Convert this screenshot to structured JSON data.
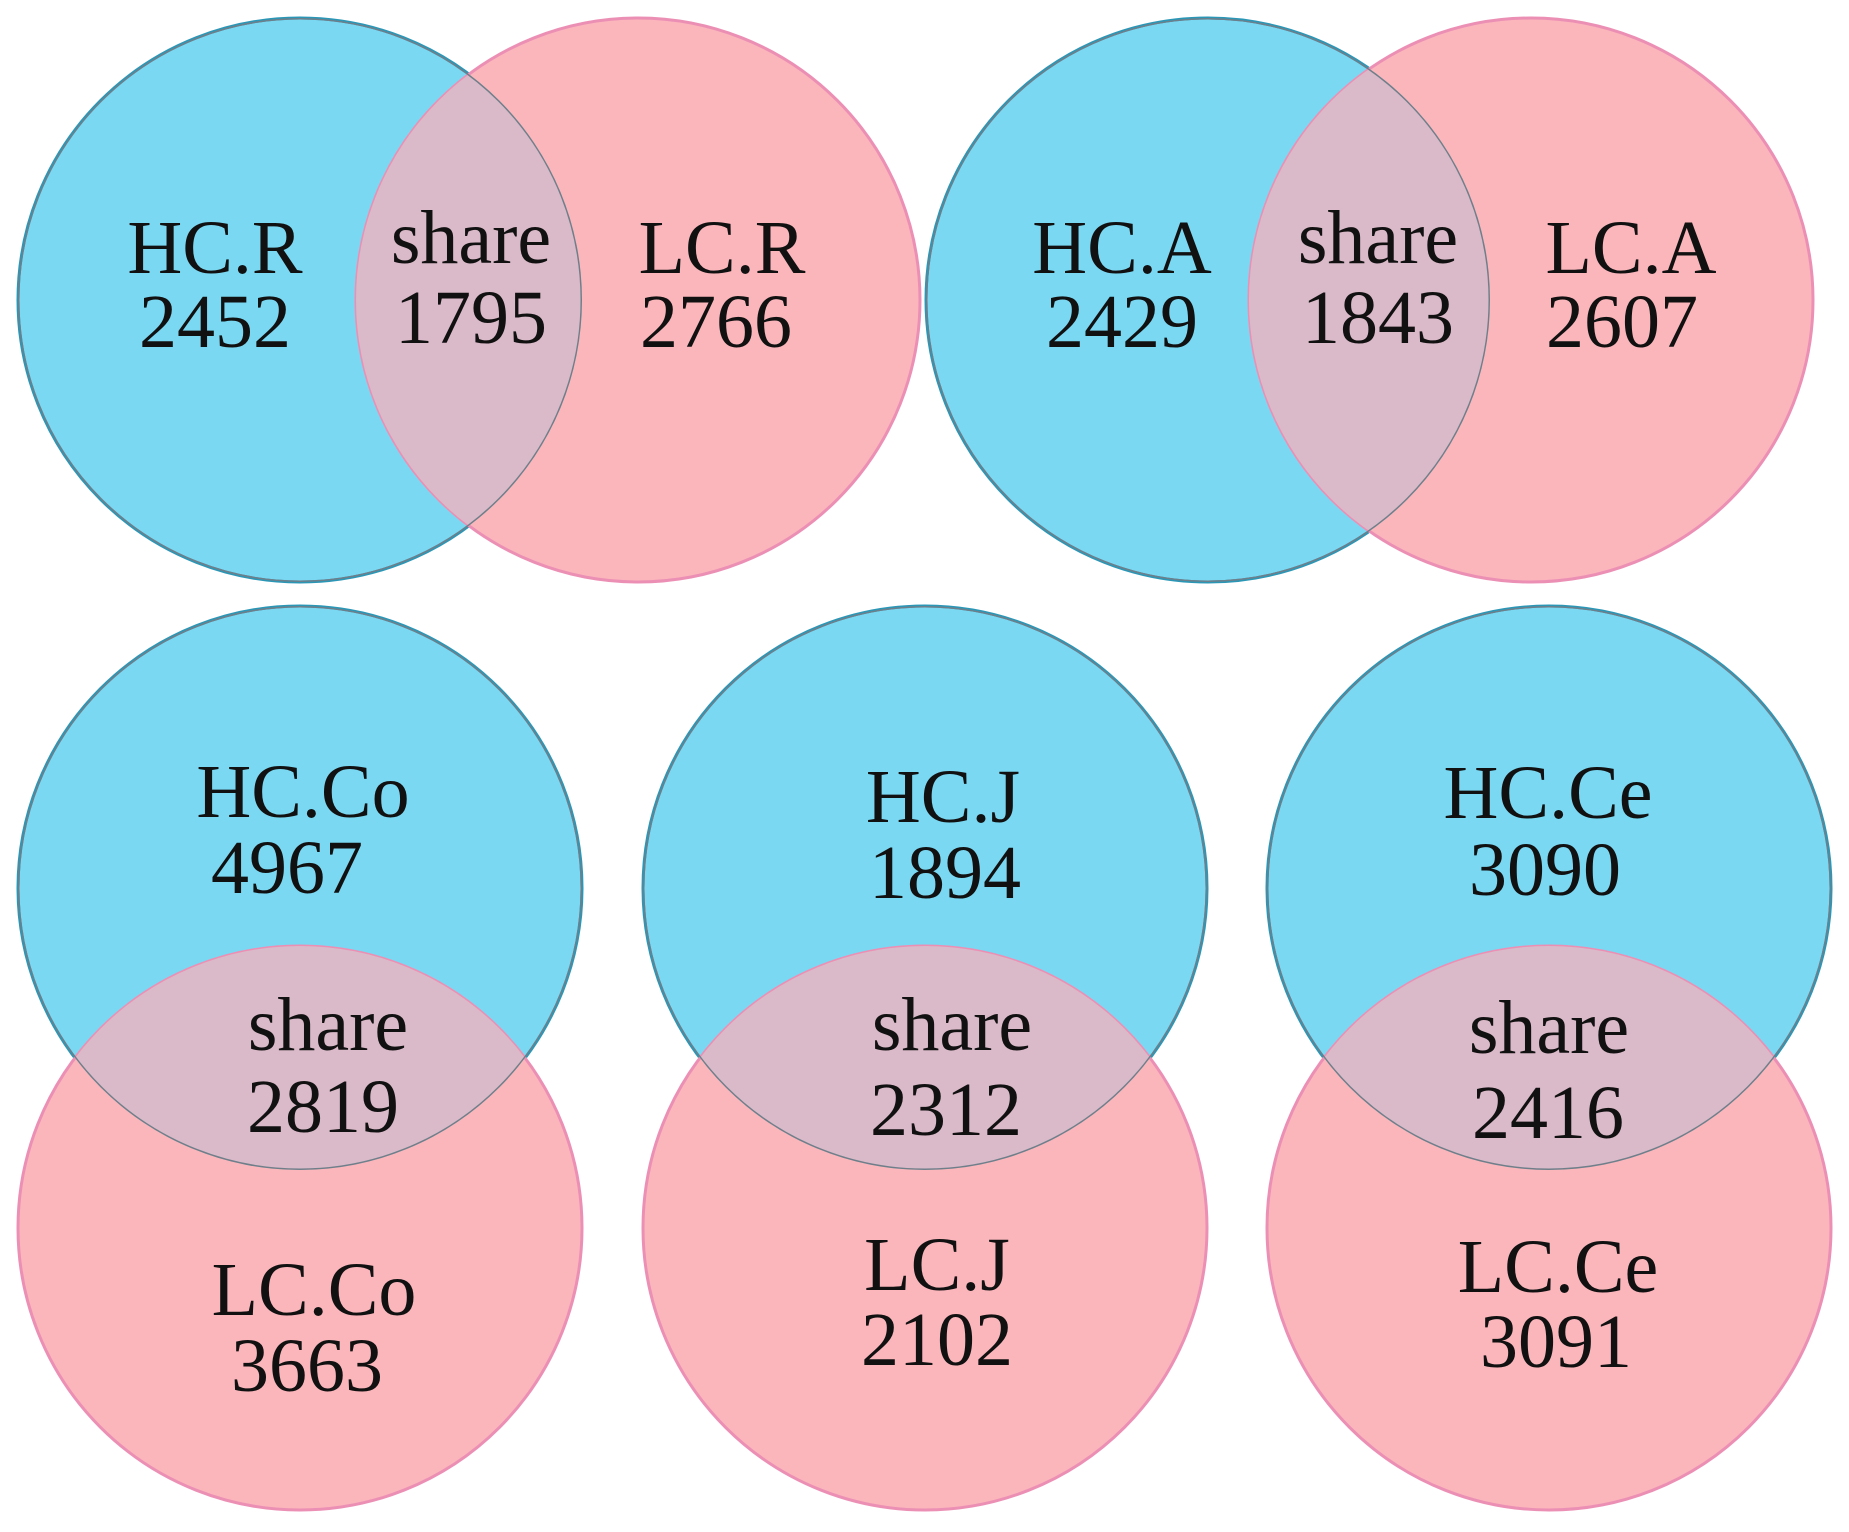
{
  "colors": {
    "hc_fill": "#7ad8f2",
    "hc_stroke": "#2b97b7",
    "lc_fill": "#fbb6bc",
    "lc_stroke": "#ec8fb4",
    "share_fill": "#dab9c8"
  },
  "diagrams": [
    {
      "orientation": "horizontal",
      "hc": {
        "label": "HC.R",
        "count": "2452"
      },
      "share": {
        "label": "share",
        "count": "1795"
      },
      "lc": {
        "label": "LC.R",
        "count": "2766"
      }
    },
    {
      "orientation": "horizontal",
      "hc": {
        "label": "HC.A",
        "count": "2429"
      },
      "share": {
        "label": "share",
        "count": "1843"
      },
      "lc": {
        "label": "LC.A",
        "count": "2607"
      }
    },
    {
      "orientation": "vertical",
      "hc": {
        "label": "HC.Co",
        "count": "4967"
      },
      "share": {
        "label": "share",
        "count": "2819"
      },
      "lc": {
        "label": "LC.Co",
        "count": "3663"
      }
    },
    {
      "orientation": "vertical",
      "hc": {
        "label": "HC.J",
        "count": "1894"
      },
      "share": {
        "label": "share",
        "count": "2312"
      },
      "lc": {
        "label": "LC.J",
        "count": "2102"
      }
    },
    {
      "orientation": "vertical",
      "hc": {
        "label": "HC.Ce",
        "count": "3090"
      },
      "share": {
        "label": "share",
        "count": "2416"
      },
      "lc": {
        "label": "LC.Ce",
        "count": "3091"
      }
    }
  ]
}
